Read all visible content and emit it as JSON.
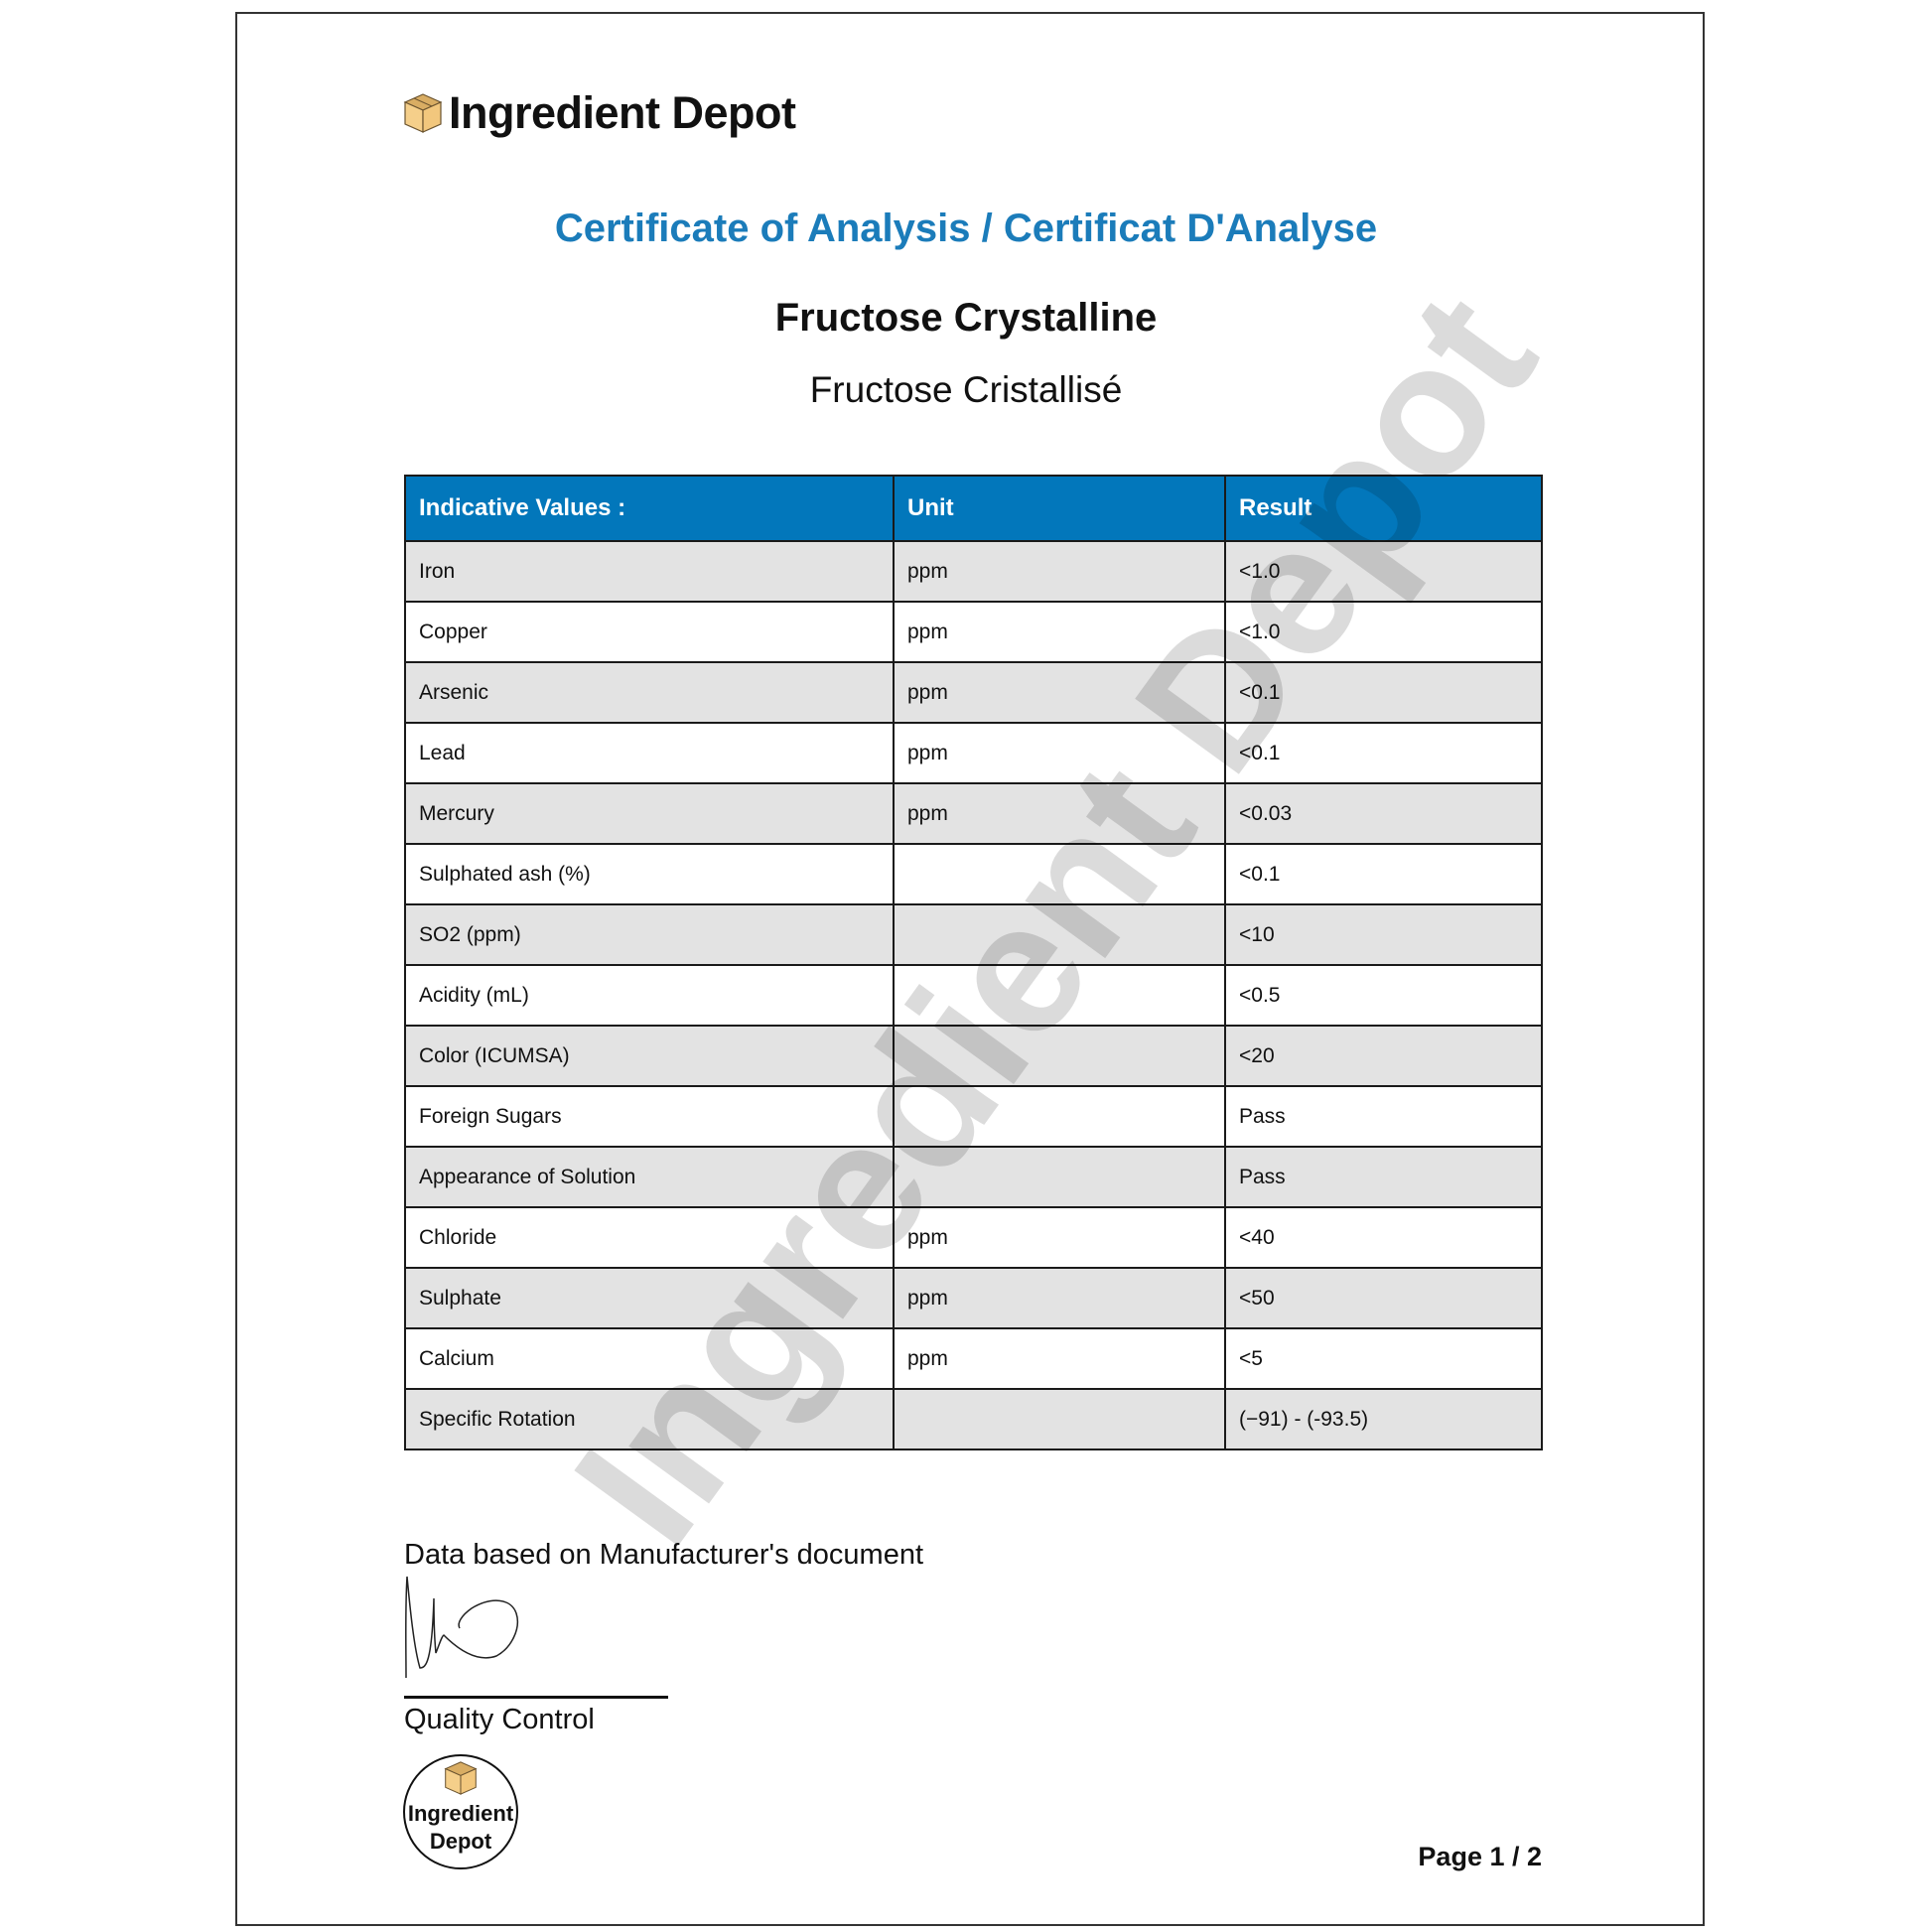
{
  "brand": {
    "name": "Ingredient Depot",
    "stamp_line1": "Ingredient",
    "stamp_line2": "Depot"
  },
  "header": {
    "title": "Certificate of Analysis / Certificat D'Analyse",
    "product_en": "Fructose Crystalline",
    "product_fr": "Fructose Cristallisé"
  },
  "table": {
    "headers": [
      "Indicative Values :",
      "Unit",
      "Result"
    ],
    "rows": [
      [
        "Iron",
        "ppm",
        "<1.0"
      ],
      [
        "Copper",
        "ppm",
        "<1.0"
      ],
      [
        "Arsenic",
        "ppm",
        "<0.1"
      ],
      [
        "Lead",
        "ppm",
        "<0.1"
      ],
      [
        "Mercury",
        "ppm",
        "<0.03"
      ],
      [
        "Sulphated ash (%)",
        "",
        "<0.1"
      ],
      [
        "SO2 (ppm)",
        "",
        "<10"
      ],
      [
        "Acidity (mL)",
        "",
        "<0.5"
      ],
      [
        "Color (ICUMSA)",
        "",
        "<20"
      ],
      [
        "Foreign Sugars",
        "",
        "Pass"
      ],
      [
        "Appearance of Solution",
        "",
        "Pass"
      ],
      [
        "Chloride",
        "ppm",
        "<40"
      ],
      [
        "Sulphate",
        "ppm",
        "<50"
      ],
      [
        "Calcium",
        "ppm",
        "<5"
      ],
      [
        "Specific Rotation",
        "",
        "(−91) - (-93.5)"
      ]
    ]
  },
  "footer": {
    "note": "Data based on Manufacturer's document",
    "signature_label": "Quality Control",
    "page": "Page 1 / 2"
  },
  "watermark": "Ingredient Depot",
  "colors": {
    "accent": "#1b7cba",
    "header_bg": "#0277bb",
    "row_shade": "#e3e3e3"
  }
}
